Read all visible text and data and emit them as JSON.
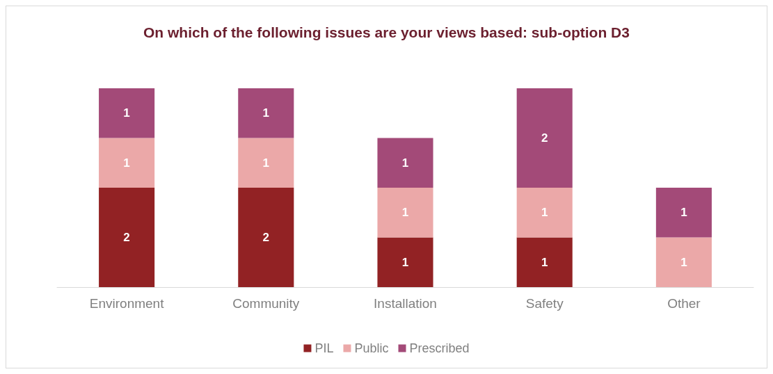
{
  "chart_data": {
    "type": "bar",
    "title": "On which of the following issues are your views based: sub-option D3",
    "categories": [
      "Environment",
      "Community",
      "Installation",
      "Safety",
      "Other"
    ],
    "stacked": true,
    "data_labels": true,
    "legend": "bottom",
    "series": [
      {
        "name": "PIL",
        "color": "#922224",
        "values": [
          2,
          2,
          1,
          1,
          null
        ]
      },
      {
        "name": "Public",
        "color": "#eba8a8",
        "values": [
          1,
          1,
          1,
          1,
          1
        ]
      },
      {
        "name": "Prescribed",
        "color": "#a34a78",
        "values": [
          1,
          1,
          1,
          2,
          1
        ]
      }
    ]
  }
}
